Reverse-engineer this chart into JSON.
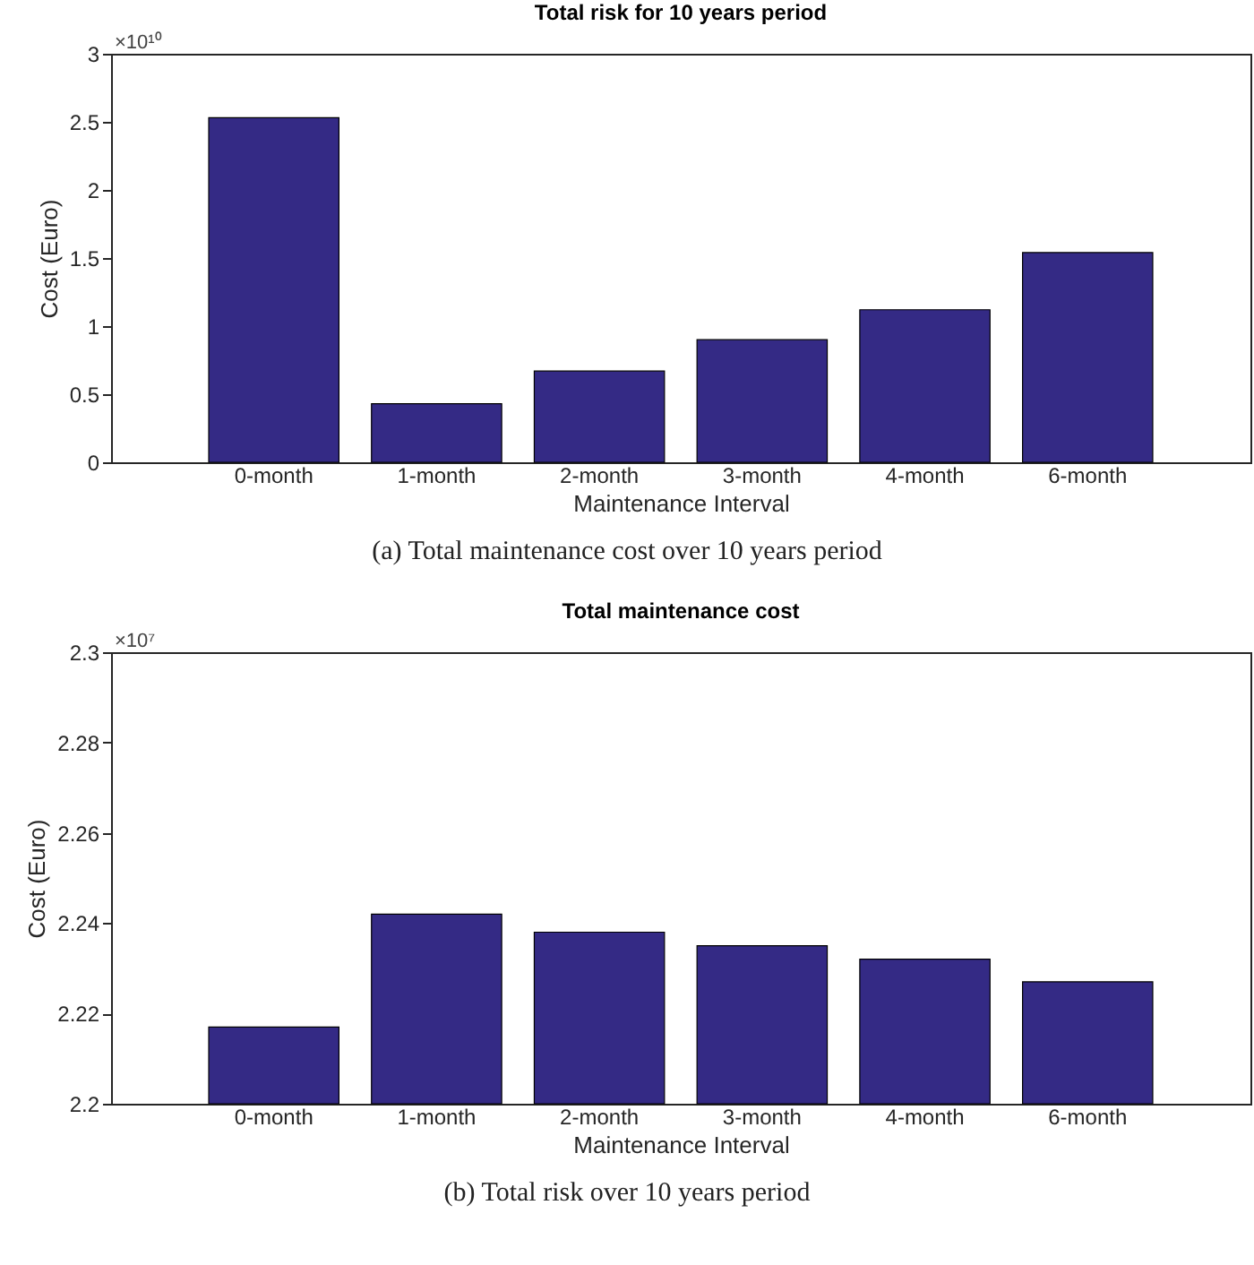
{
  "chart_data": [
    {
      "type": "bar",
      "title": "Total risk for 10 years period",
      "xlabel": "Maintenance Interval",
      "ylabel": "Cost (Euro)",
      "categories": [
        "0-month",
        "1-month",
        "2-month",
        "3-month",
        "4-month",
        "6-month"
      ],
      "series": [
        {
          "color": "#342a85",
          "values": [
            2.53,
            0.43,
            0.67,
            0.9,
            1.12,
            1.54
          ]
        }
      ],
      "ylim": [
        0,
        3
      ],
      "yticks": [
        0,
        0.5,
        1,
        1.5,
        2,
        2.5,
        3
      ],
      "grid": false,
      "legend": false,
      "annotations": [
        "×10¹⁰",
        "(a) Total maintenance cost over 10 years period"
      ]
    },
    {
      "type": "bar",
      "title": "Total maintenance cost",
      "xlabel": "Maintenance Interval",
      "ylabel": "Cost (Euro)",
      "categories": [
        "0-month",
        "1-month",
        "2-month",
        "3-month",
        "4-month",
        "6-month"
      ],
      "series": [
        {
          "color": "#342a85",
          "values": [
            2.217,
            2.242,
            2.238,
            2.235,
            2.232,
            2.227
          ]
        }
      ],
      "ylim": [
        2.2,
        2.3
      ],
      "yticks": [
        2.2,
        2.22,
        2.24,
        2.26,
        2.28,
        2.3
      ],
      "grid": false,
      "legend": false,
      "annotations": [
        "×10⁷",
        "(b) Total risk over 10 years period"
      ]
    }
  ]
}
